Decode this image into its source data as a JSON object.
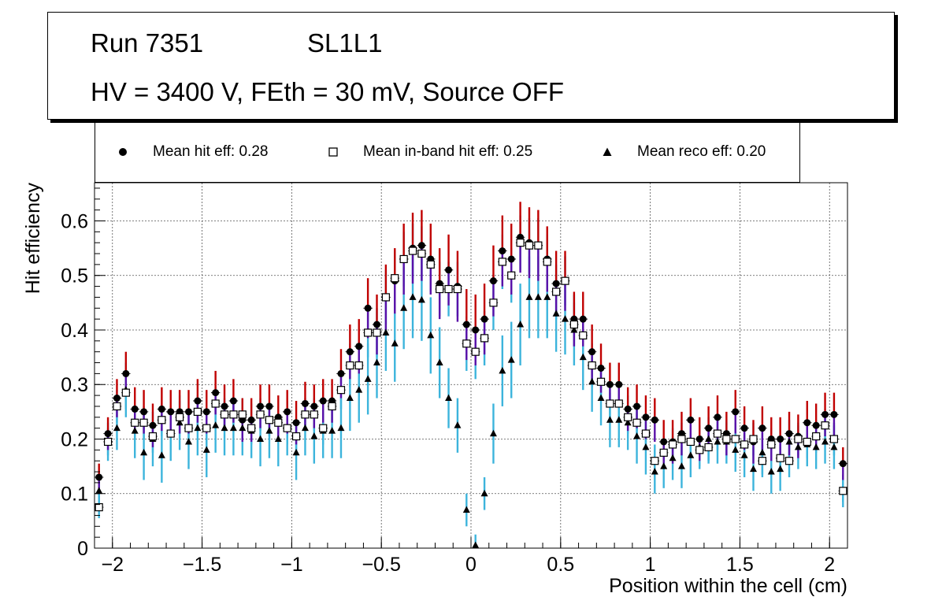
{
  "title_box": {
    "run": "Run 7351",
    "layer": "SL1L1",
    "conditions": "HV = 3400 V, FEth = 30 mV, Source OFF"
  },
  "legend": {
    "hit": "Mean hit  eff: 0.28",
    "inband": "Mean in-band hit eff: 0.25",
    "reco": "Mean reco eff: 0.20"
  },
  "colors": {
    "hit_err_pos": "#c00000",
    "hit_err_neg": "#5a0fa8",
    "inband_err": "#3cb4dc",
    "reco_err": "#3cb4dc",
    "grid": "#555555"
  },
  "chart_data": {
    "type": "scatter",
    "xlabel": "Position within the cell (cm)",
    "ylabel": "Hit efficiency",
    "xlim": [
      -2.1,
      2.1
    ],
    "ylim": [
      0,
      0.67
    ],
    "grid": true,
    "xticks": [
      -2,
      -1.5,
      -1,
      -0.5,
      0,
      0.5,
      1,
      1.5,
      2
    ],
    "xtick_labels": [
      "−2",
      "−1.5",
      "−1",
      "−0.5",
      "0",
      "0.5",
      "1",
      "1.5",
      "2"
    ],
    "yticks": [
      0,
      0.1,
      0.2,
      0.3,
      0.4,
      0.5,
      0.6
    ],
    "ytick_labels": [
      "0",
      "0.1",
      "0.2",
      "0.3",
      "0.4",
      "0.5",
      "0.6"
    ],
    "x": [
      -2.075,
      -2.025,
      -1.975,
      -1.925,
      -1.875,
      -1.825,
      -1.775,
      -1.725,
      -1.675,
      -1.625,
      -1.575,
      -1.525,
      -1.475,
      -1.425,
      -1.375,
      -1.325,
      -1.275,
      -1.225,
      -1.175,
      -1.125,
      -1.075,
      -1.025,
      -0.975,
      -0.925,
      -0.875,
      -0.825,
      -0.775,
      -0.725,
      -0.675,
      -0.625,
      -0.575,
      -0.525,
      -0.475,
      -0.425,
      -0.375,
      -0.325,
      -0.275,
      -0.225,
      -0.175,
      -0.125,
      -0.075,
      -0.025,
      0.025,
      0.075,
      0.125,
      0.175,
      0.225,
      0.275,
      0.325,
      0.375,
      0.425,
      0.475,
      0.525,
      0.575,
      0.625,
      0.675,
      0.725,
      0.775,
      0.825,
      0.875,
      0.925,
      0.975,
      1.025,
      1.075,
      1.125,
      1.175,
      1.225,
      1.275,
      1.325,
      1.375,
      1.425,
      1.475,
      1.525,
      1.575,
      1.625,
      1.675,
      1.725,
      1.775,
      1.825,
      1.875,
      1.925,
      1.975,
      2.025,
      2.075
    ],
    "series": [
      {
        "name": "Mean hit  eff: 0.28",
        "marker": "circle",
        "values": [
          0.13,
          0.21,
          0.275,
          0.32,
          0.255,
          0.25,
          0.225,
          0.255,
          0.25,
          0.25,
          0.25,
          0.27,
          0.25,
          0.285,
          0.26,
          0.27,
          0.235,
          0.235,
          0.26,
          0.26,
          0.24,
          0.25,
          0.23,
          0.265,
          0.26,
          0.27,
          0.27,
          0.32,
          0.36,
          0.37,
          0.44,
          0.41,
          0.46,
          0.49,
          0.53,
          0.55,
          0.555,
          0.53,
          0.485,
          0.51,
          0.48,
          0.41,
          0.4,
          0.42,
          0.49,
          0.545,
          0.53,
          0.57,
          0.56,
          0.555,
          0.53,
          0.485,
          0.49,
          0.42,
          0.42,
          0.36,
          0.33,
          0.3,
          0.3,
          0.255,
          0.26,
          0.24,
          0.235,
          0.195,
          0.195,
          0.21,
          0.235,
          0.2,
          0.22,
          0.24,
          0.21,
          0.25,
          0.22,
          0.195,
          0.22,
          0.2,
          0.2,
          0.21,
          0.205,
          0.23,
          0.225,
          0.245,
          0.245,
          0.155
        ],
        "err": [
          0.025,
          0.03,
          0.035,
          0.04,
          0.04,
          0.04,
          0.04,
          0.04,
          0.04,
          0.04,
          0.04,
          0.04,
          0.04,
          0.04,
          0.04,
          0.04,
          0.04,
          0.04,
          0.04,
          0.04,
          0.04,
          0.04,
          0.04,
          0.04,
          0.04,
          0.04,
          0.04,
          0.045,
          0.05,
          0.05,
          0.055,
          0.055,
          0.06,
          0.06,
          0.065,
          0.065,
          0.065,
          0.065,
          0.065,
          0.065,
          0.065,
          0.065,
          0.065,
          0.065,
          0.065,
          0.065,
          0.065,
          0.065,
          0.065,
          0.065,
          0.06,
          0.06,
          0.055,
          0.05,
          0.05,
          0.05,
          0.045,
          0.04,
          0.04,
          0.04,
          0.04,
          0.04,
          0.04,
          0.04,
          0.04,
          0.04,
          0.04,
          0.04,
          0.04,
          0.04,
          0.04,
          0.04,
          0.04,
          0.04,
          0.04,
          0.04,
          0.04,
          0.04,
          0.04,
          0.04,
          0.04,
          0.04,
          0.04,
          0.03
        ]
      },
      {
        "name": "Mean in-band hit eff: 0.25",
        "marker": "open-square",
        "values": [
          0.075,
          0.195,
          0.26,
          0.285,
          0.23,
          0.23,
          0.205,
          0.235,
          0.21,
          0.24,
          0.22,
          0.25,
          0.22,
          0.265,
          0.245,
          0.245,
          0.245,
          0.22,
          0.245,
          0.235,
          0.23,
          0.22,
          0.205,
          0.245,
          0.245,
          0.22,
          0.26,
          0.29,
          0.335,
          0.335,
          0.395,
          0.395,
          0.46,
          0.495,
          0.53,
          0.545,
          0.54,
          0.52,
          0.475,
          0.475,
          0.475,
          0.375,
          0.36,
          0.385,
          0.45,
          0.525,
          0.5,
          0.56,
          0.555,
          0.555,
          0.525,
          0.47,
          0.49,
          0.41,
          0.39,
          0.335,
          0.305,
          0.265,
          0.265,
          0.24,
          0.23,
          0.21,
          0.16,
          0.175,
          0.19,
          0.2,
          0.195,
          0.18,
          0.185,
          0.21,
          0.2,
          0.2,
          0.19,
          0.2,
          0.16,
          0.19,
          0.165,
          0.16,
          0.2,
          0.195,
          0.205,
          0.225,
          0.2,
          0.105
        ],
        "err": [
          0.02,
          0.025,
          0.03,
          0.03,
          0.03,
          0.03,
          0.03,
          0.03,
          0.03,
          0.03,
          0.03,
          0.03,
          0.03,
          0.03,
          0.03,
          0.03,
          0.03,
          0.03,
          0.03,
          0.03,
          0.03,
          0.03,
          0.03,
          0.03,
          0.03,
          0.03,
          0.03,
          0.035,
          0.04,
          0.04,
          0.045,
          0.045,
          0.05,
          0.05,
          0.05,
          0.05,
          0.05,
          0.05,
          0.05,
          0.05,
          0.05,
          0.05,
          0.05,
          0.05,
          0.05,
          0.05,
          0.05,
          0.05,
          0.05,
          0.05,
          0.05,
          0.05,
          0.045,
          0.04,
          0.04,
          0.04,
          0.035,
          0.03,
          0.03,
          0.03,
          0.03,
          0.03,
          0.03,
          0.03,
          0.03,
          0.03,
          0.03,
          0.03,
          0.03,
          0.03,
          0.03,
          0.03,
          0.03,
          0.03,
          0.03,
          0.03,
          0.03,
          0.03,
          0.03,
          0.03,
          0.03,
          0.03,
          0.03,
          0.02
        ]
      },
      {
        "name": "Mean reco eff: 0.20",
        "marker": "triangle",
        "values": [
          0.105,
          0.195,
          0.22,
          0.29,
          0.215,
          0.175,
          0.2,
          0.17,
          0.21,
          0.23,
          0.195,
          0.22,
          0.18,
          0.225,
          0.22,
          0.22,
          0.22,
          0.215,
          0.2,
          0.215,
          0.2,
          0.22,
          0.175,
          0.22,
          0.205,
          0.215,
          0.215,
          0.22,
          0.275,
          0.29,
          0.31,
          0.34,
          0.395,
          0.375,
          0.44,
          0.46,
          0.455,
          0.39,
          0.34,
          0.275,
          0.225,
          0.07,
          0.005,
          0.1,
          0.21,
          0.325,
          0.345,
          0.41,
          0.46,
          0.46,
          0.46,
          0.43,
          0.42,
          0.4,
          0.35,
          0.305,
          0.275,
          0.235,
          0.235,
          0.23,
          0.205,
          0.185,
          0.14,
          0.15,
          0.165,
          0.15,
          0.17,
          0.185,
          0.2,
          0.195,
          0.195,
          0.18,
          0.17,
          0.145,
          0.175,
          0.14,
          0.145,
          0.195,
          0.185,
          0.19,
          0.185,
          0.195,
          0.185,
          0.105
        ],
        "err": [
          0.03,
          0.035,
          0.04,
          0.05,
          0.05,
          0.05,
          0.05,
          0.05,
          0.05,
          0.05,
          0.05,
          0.05,
          0.05,
          0.05,
          0.05,
          0.05,
          0.05,
          0.05,
          0.05,
          0.05,
          0.05,
          0.05,
          0.05,
          0.05,
          0.05,
          0.05,
          0.05,
          0.055,
          0.06,
          0.06,
          0.065,
          0.065,
          0.07,
          0.07,
          0.075,
          0.075,
          0.075,
          0.07,
          0.065,
          0.055,
          0.05,
          0.03,
          0.02,
          0.03,
          0.055,
          0.065,
          0.07,
          0.075,
          0.075,
          0.075,
          0.075,
          0.07,
          0.065,
          0.065,
          0.06,
          0.055,
          0.05,
          0.05,
          0.05,
          0.05,
          0.05,
          0.05,
          0.04,
          0.04,
          0.04,
          0.04,
          0.04,
          0.04,
          0.04,
          0.04,
          0.04,
          0.04,
          0.04,
          0.04,
          0.04,
          0.04,
          0.04,
          0.04,
          0.04,
          0.04,
          0.04,
          0.04,
          0.04,
          0.03
        ]
      }
    ]
  }
}
